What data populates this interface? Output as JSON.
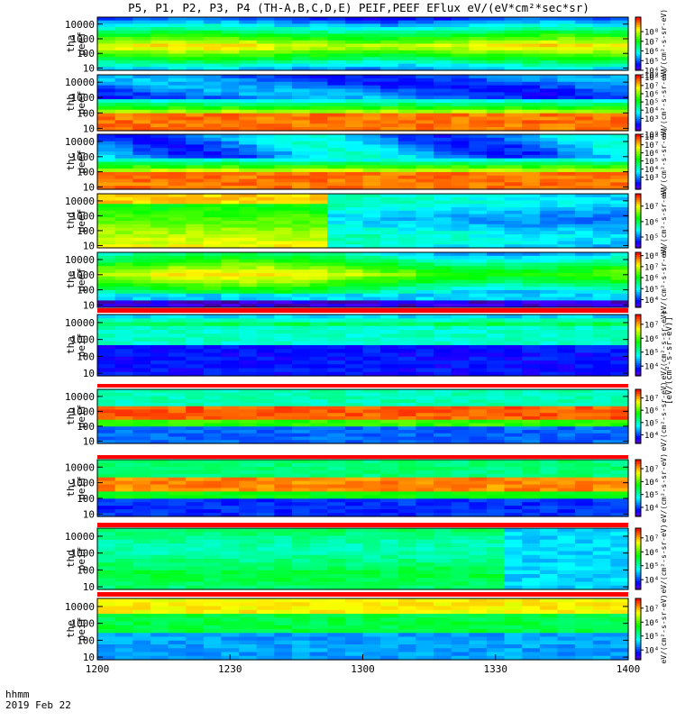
{
  "chart_data": {
    "type": "heatmap",
    "title": "P5, P1, P2, P3, P4 (TH-A,B,C,D,E) PEIF,PEEF EFlux eV/(eV*cm²*sec*sr)",
    "x_axis": {
      "ticks": [
        "1200",
        "1230",
        "1300",
        "1330",
        "1400"
      ],
      "range": [
        "12:00",
        "14:00"
      ],
      "annotation_lines": [
        "hhmm",
        "2019 Feb 22"
      ]
    },
    "y_axis": {
      "scale": "log",
      "range_eV": [
        7,
        30000
      ],
      "ticks": [
        "10",
        "100",
        "1000",
        "10000"
      ]
    },
    "colorbar": {
      "scale": "log",
      "colormap": "rainbow",
      "unit_label": "eV/(cm²-s-sr-eV)",
      "full_label": "[eV/(cm²-s-sr-eV)]"
    },
    "panels": [
      {
        "label_line1": "tha",
        "label_line2": "peef",
        "species": "electron",
        "cbar_ticks": [
          "10⁴",
          "10⁵",
          "10⁶",
          "10⁷",
          "10⁸"
        ],
        "cbar_range": [
          3,
          8.5
        ]
      },
      {
        "label_line1": "thb",
        "label_line2": "peef",
        "species": "electron",
        "cbar_ticks": [
          "10³",
          "10⁴",
          "10⁵",
          "10⁶",
          "10⁷",
          "10⁸",
          "10⁹"
        ],
        "cbar_range": [
          2.5,
          9.3
        ]
      },
      {
        "label_line1": "thc",
        "label_line2": "peef",
        "species": "electron",
        "cbar_ticks": [
          "10³",
          "10⁴",
          "10⁵",
          "10⁶",
          "10⁷",
          "10⁸",
          "10⁹"
        ],
        "cbar_range": [
          2.5,
          9.3
        ]
      },
      {
        "label_line1": "thd",
        "label_line2": "peef",
        "species": "electron",
        "cbar_ticks": [
          "10⁵",
          "10⁶",
          "10⁷"
        ],
        "cbar_range": [
          4.3,
          7.8
        ]
      },
      {
        "label_line1": "the",
        "label_line2": "peef",
        "species": "electron",
        "cbar_ticks": [
          "10⁴",
          "10⁵",
          "10⁶",
          "10⁷",
          "10⁸"
        ],
        "cbar_range": [
          3.3,
          8.3
        ]
      },
      {
        "label_line1": "tha",
        "label_line2": "peif",
        "species": "ion",
        "cbar_ticks": [
          "10⁴",
          "10⁵",
          "10⁶",
          "10⁷"
        ],
        "cbar_range": [
          3.3,
          7.7
        ]
      },
      {
        "label_line1": "thb",
        "label_line2": "peif",
        "species": "ion",
        "cbar_ticks": [
          "10⁴",
          "10⁵",
          "10⁶",
          "10⁷"
        ],
        "cbar_range": [
          3.3,
          7.7
        ]
      },
      {
        "label_line1": "thc",
        "label_line2": "peif",
        "species": "ion",
        "cbar_ticks": [
          "10⁴",
          "10⁵",
          "10⁶",
          "10⁷"
        ],
        "cbar_range": [
          3.3,
          7.7
        ]
      },
      {
        "label_line1": "thd",
        "label_line2": "peif",
        "species": "ion",
        "cbar_ticks": [
          "10⁴",
          "10⁵",
          "10⁶",
          "10⁷"
        ],
        "cbar_range": [
          3.3,
          7.7
        ]
      },
      {
        "label_line1": "the",
        "label_line2": "peif",
        "species": "ion",
        "cbar_ticks": [
          "10⁴",
          "10⁵",
          "10⁶",
          "10⁷"
        ],
        "cbar_range": [
          3.3,
          7.7
        ]
      }
    ]
  }
}
